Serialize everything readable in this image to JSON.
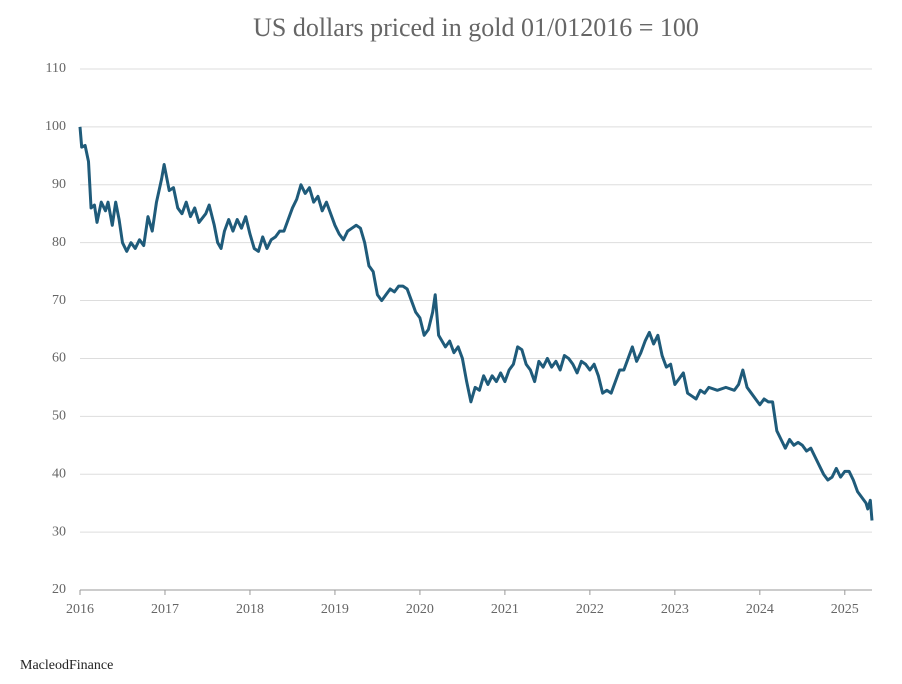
{
  "chart_data": {
    "type": "line",
    "title": "US dollars priced in gold 01/012016 = 100",
    "source": "MacleodFinance",
    "x": [
      2016.0,
      2016.02,
      2016.06,
      2016.1,
      2016.13,
      2016.17,
      2016.2,
      2016.25,
      2016.3,
      2016.33,
      2016.38,
      2016.42,
      2016.46,
      2016.5,
      2016.55,
      2016.6,
      2016.65,
      2016.7,
      2016.75,
      2016.8,
      2016.85,
      2016.9,
      2016.96,
      2016.99,
      2017.05,
      2017.1,
      2017.15,
      2017.2,
      2017.25,
      2017.3,
      2017.35,
      2017.4,
      2017.48,
      2017.52,
      2017.58,
      2017.62,
      2017.66,
      2017.7,
      2017.75,
      2017.8,
      2017.85,
      2017.9,
      2017.95,
      2018.0,
      2018.05,
      2018.1,
      2018.15,
      2018.2,
      2018.25,
      2018.3,
      2018.35,
      2018.4,
      2018.45,
      2018.5,
      2018.55,
      2018.6,
      2018.65,
      2018.7,
      2018.75,
      2018.8,
      2018.85,
      2018.9,
      2018.95,
      2019.0,
      2019.05,
      2019.1,
      2019.15,
      2019.2,
      2019.25,
      2019.3,
      2019.35,
      2019.4,
      2019.45,
      2019.5,
      2019.55,
      2019.6,
      2019.65,
      2019.7,
      2019.75,
      2019.8,
      2019.85,
      2019.9,
      2019.95,
      2020.0,
      2020.05,
      2020.1,
      2020.15,
      2020.18,
      2020.22,
      2020.3,
      2020.35,
      2020.4,
      2020.45,
      2020.5,
      2020.55,
      2020.6,
      2020.65,
      2020.7,
      2020.75,
      2020.8,
      2020.85,
      2020.9,
      2020.95,
      2021.0,
      2021.05,
      2021.1,
      2021.15,
      2021.2,
      2021.25,
      2021.3,
      2021.35,
      2021.4,
      2021.45,
      2021.5,
      2021.55,
      2021.6,
      2021.65,
      2021.7,
      2021.75,
      2021.8,
      2021.85,
      2021.9,
      2021.95,
      2022.0,
      2022.05,
      2022.1,
      2022.15,
      2022.2,
      2022.25,
      2022.3,
      2022.35,
      2022.4,
      2022.45,
      2022.5,
      2022.55,
      2022.6,
      2022.65,
      2022.7,
      2022.75,
      2022.8,
      2022.85,
      2022.9,
      2022.95,
      2023.0,
      2023.05,
      2023.1,
      2023.15,
      2023.2,
      2023.25,
      2023.3,
      2023.35,
      2023.4,
      2023.5,
      2023.6,
      2023.7,
      2023.75,
      2023.8,
      2023.85,
      2023.9,
      2023.95,
      2024.0,
      2024.05,
      2024.1,
      2024.15,
      2024.2,
      2024.25,
      2024.3,
      2024.35,
      2024.4,
      2024.45,
      2024.5,
      2024.55,
      2024.6,
      2024.65,
      2024.7,
      2024.75,
      2024.8,
      2024.85,
      2024.9,
      2024.95,
      2025.0,
      2025.05,
      2025.1,
      2025.15,
      2025.2,
      2025.25,
      2025.27,
      2025.3,
      2025.32
    ],
    "series": [
      {
        "name": "US dollars priced in gold",
        "color": "#1f5b7a",
        "values": [
          100,
          96.5,
          96.8,
          94,
          86,
          86.5,
          83.5,
          87,
          85.5,
          87,
          83,
          87,
          84,
          80,
          78.5,
          80,
          79,
          80.5,
          79.5,
          84.5,
          82,
          87,
          91,
          93.5,
          89,
          89.5,
          86,
          85,
          87,
          84.5,
          86,
          83.5,
          85,
          86.5,
          83,
          80,
          79,
          82,
          84,
          82,
          84,
          82.5,
          84.5,
          81.5,
          79,
          78.5,
          81,
          79,
          80.5,
          81,
          82,
          82,
          84,
          86,
          87.5,
          90,
          88.5,
          89.5,
          87,
          88,
          85.5,
          87,
          85,
          83,
          81.5,
          80.5,
          82,
          82.5,
          83,
          82.5,
          80,
          76,
          75,
          71,
          70,
          71,
          72,
          71.5,
          72.5,
          72.5,
          72,
          70,
          68,
          67,
          64,
          65,
          68,
          71,
          64,
          62,
          63,
          61,
          62,
          60,
          56,
          52.5,
          55,
          54.5,
          57,
          55.5,
          57,
          56,
          57.5,
          56,
          58,
          59,
          62,
          61.5,
          59,
          58,
          56,
          59.5,
          58.5,
          60,
          58.5,
          59.5,
          58,
          60.5,
          60,
          59,
          57.5,
          59.5,
          59,
          58,
          59,
          57,
          54,
          54.5,
          54,
          56,
          58,
          58,
          60,
          62,
          59.5,
          61,
          63,
          64.5,
          62.5,
          64,
          60.5,
          58.5,
          59,
          55.5,
          56.5,
          57.5,
          54,
          53.5,
          53,
          54.5,
          54,
          55,
          54.5,
          55,
          54.5,
          55.5,
          58,
          55,
          54,
          53,
          52,
          53,
          52.5,
          52.5,
          47.5,
          46,
          44.5,
          46,
          45,
          45.5,
          45,
          44,
          44.5,
          43,
          41.5,
          40,
          39,
          39.5,
          41,
          39.5,
          40.5,
          40.5,
          39,
          37,
          36,
          35,
          34,
          35.5,
          32
        ]
      }
    ],
    "xlim": [
      2016,
      2025.32
    ],
    "xticks": [
      2016,
      2017,
      2018,
      2019,
      2020,
      2021,
      2022,
      2023,
      2024,
      2025
    ],
    "ylim": [
      20,
      110
    ],
    "yticks": [
      20,
      30,
      40,
      50,
      60,
      70,
      80,
      90,
      100,
      110
    ],
    "grid": true
  }
}
